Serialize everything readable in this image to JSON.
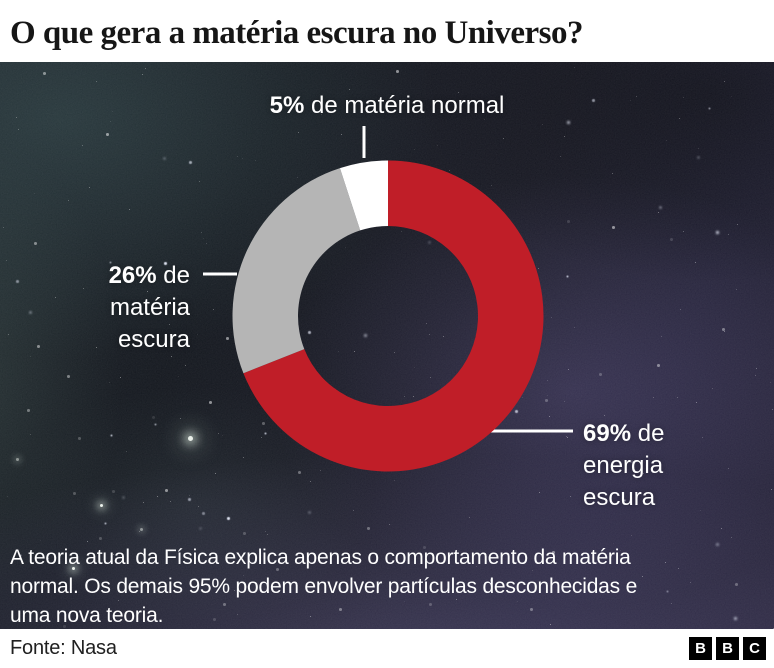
{
  "title": "O que gera a matéria escura no Universo?",
  "chart_data": {
    "type": "pie",
    "subtype": "donut",
    "title": "O que gera a matéria escura no Universo?",
    "unit": "%",
    "direction": "clockwise",
    "start_angle_deg": 0,
    "legend_position": "callouts",
    "slices": [
      {
        "id": "energia-escura",
        "label": "69% de energia escura",
        "value": 69,
        "color": "#c01e28"
      },
      {
        "id": "materia-escura",
        "label": "26% de matéria escura",
        "value": 26,
        "color": "#b5b5b5"
      },
      {
        "id": "materia-normal",
        "label": "5% de matéria normal",
        "value": 5,
        "color": "#ffffff"
      }
    ]
  },
  "callouts": {
    "normal": {
      "bold": "5%",
      "rest": " de matéria normal"
    },
    "dark_matter": {
      "bold": "26%",
      "rest": " de\nmatéria\nescura"
    },
    "dark_energy": {
      "bold": "69%",
      "rest": " de\nenergia\nescura"
    }
  },
  "caption": "A teoria atual da Física explica apenas o comportamento da matéria\nnormal. Os demais 95% podem envolver partículas desconhecidas e\numa nova teoria.",
  "footer": {
    "source": "Fonte: Nasa",
    "logo_letters": [
      "B",
      "B",
      "C"
    ]
  },
  "colors": {
    "dark_energy_red": "#c01e28",
    "dark_matter_gray": "#b5b5b5",
    "normal_matter_white": "#ffffff",
    "ink": "#161616"
  }
}
